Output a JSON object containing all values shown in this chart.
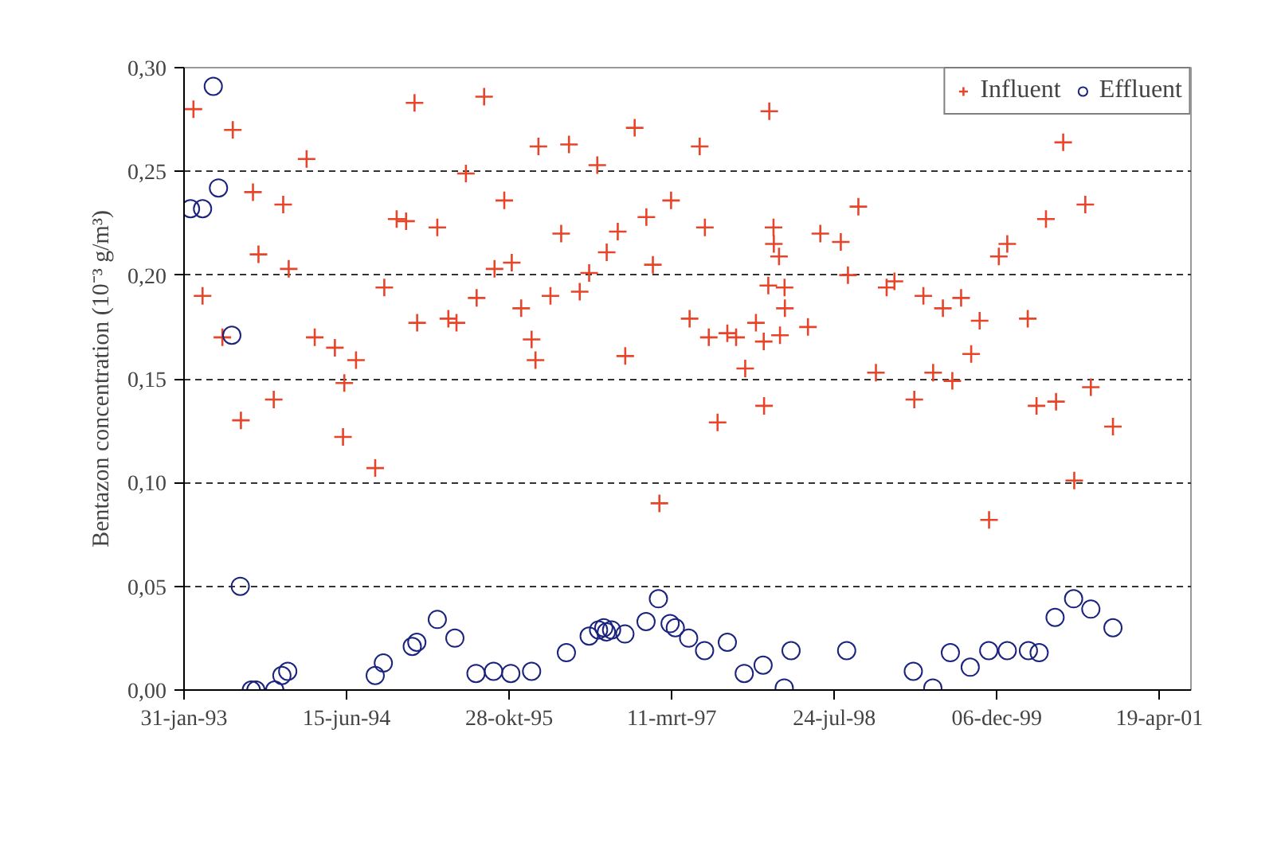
{
  "chart_data": {
    "type": "scatter",
    "ylabel": "Bentazon concentration (10⁻³ g/m³)",
    "xlim": [
      "1993-01-31",
      "2001-07-25"
    ],
    "xticks": [
      {
        "value": "1993-01-31",
        "label": "31-jan-93"
      },
      {
        "value": "1994-06-15",
        "label": "15-jun-94"
      },
      {
        "value": "1995-10-28",
        "label": "28-okt-95"
      },
      {
        "value": "1997-03-11",
        "label": "11-mrt-97"
      },
      {
        "value": "1998-07-24",
        "label": "24-jul-98"
      },
      {
        "value": "1999-12-06",
        "label": "06-dec-99"
      },
      {
        "value": "2001-04-19",
        "label": "19-apr-01"
      }
    ],
    "ylim": [
      0,
      0.3
    ],
    "yticks": [
      {
        "value": 0,
        "label": "0,00"
      },
      {
        "value": 0.05,
        "label": "0,05"
      },
      {
        "value": 0.1,
        "label": "0,10"
      },
      {
        "value": 0.15,
        "label": "0,15"
      },
      {
        "value": 0.2,
        "label": "0,20"
      },
      {
        "value": 0.25,
        "label": "0,25"
      },
      {
        "value": 0.3,
        "label": "0,30"
      }
    ],
    "grid": "y",
    "legend": "top right",
    "series": [
      {
        "name": "Influent",
        "color": "#e8442a",
        "marker": "cross",
        "x": [
          "1993-03-01",
          "1993-06-30",
          "1993-03-29",
          "1993-05-29",
          "1993-07-25",
          "1993-08-31",
          "1993-09-17",
          "1993-11-03",
          "1993-12-02",
          "1993-12-19",
          "1994-02-12",
          "1994-03-09",
          "1994-05-10",
          "1994-06-04",
          "1994-06-08",
          "1994-07-14",
          "1994-09-11",
          "1994-10-09",
          "1994-11-16",
          "1994-12-15",
          "1995-01-10",
          "1995-01-18",
          "1995-03-21",
          "1995-04-24",
          "1995-05-19",
          "1995-06-17",
          "1995-07-20",
          "1995-08-12",
          "1995-09-13",
          "1995-10-13",
          "1995-11-05",
          "1995-12-04",
          "1996-01-05",
          "1996-01-17",
          "1996-01-26",
          "1996-03-03",
          "1996-04-05",
          "1996-04-29",
          "1996-06-01",
          "1996-06-30",
          "1996-07-25",
          "1996-08-23",
          "1996-09-26",
          "1996-10-19",
          "1996-11-17",
          "1996-12-23",
          "1997-01-12",
          "1997-02-01",
          "1997-03-09",
          "1997-05-05",
          "1997-06-05",
          "1997-06-21",
          "1997-07-03",
          "1997-07-30",
          "1997-08-29",
          "1997-09-25",
          "1997-10-23",
          "1997-11-25",
          "1997-12-19",
          "1997-12-20",
          "1998-01-02",
          "1998-01-05",
          "1998-01-18",
          "1998-01-19",
          "1998-02-04",
          "1998-02-07",
          "1998-02-21",
          "1998-02-22",
          "1998-05-04",
          "1998-06-11",
          "1998-08-13",
          "1998-09-04",
          "1998-10-06",
          "1998-11-29",
          "1999-01-01",
          "1999-01-25",
          "1999-03-27",
          "1999-04-24",
          "1999-05-24",
          "1999-06-23",
          "1999-07-22",
          "1999-08-18",
          "1999-09-18",
          "1999-10-14",
          "1999-11-12",
          "1999-12-12",
          "2000-01-07",
          "2000-03-10",
          "2000-04-06",
          "2000-05-05",
          "2000-06-05",
          "2000-06-27",
          "2000-07-31",
          "2000-09-03",
          "2000-09-20",
          "2000-11-27"
        ],
        "values": [
          0.28,
          0.27,
          0.19,
          0.17,
          0.13,
          0.24,
          0.21,
          0.14,
          0.234,
          0.203,
          0.256,
          0.17,
          0.165,
          0.122,
          0.148,
          0.159,
          0.107,
          0.194,
          0.227,
          0.226,
          0.283,
          0.177,
          0.223,
          0.179,
          0.177,
          0.249,
          0.189,
          0.286,
          0.203,
          0.236,
          0.206,
          0.184,
          0.169,
          0.159,
          0.262,
          0.19,
          0.22,
          0.263,
          0.192,
          0.201,
          0.253,
          0.211,
          0.221,
          0.161,
          0.271,
          0.228,
          0.205,
          0.09,
          0.236,
          0.179,
          0.262,
          0.223,
          0.17,
          0.129,
          0.172,
          0.17,
          0.155,
          0.177,
          0.168,
          0.137,
          0.195,
          0.279,
          0.223,
          0.215,
          0.209,
          0.171,
          0.194,
          0.184,
          0.175,
          0.22,
          0.216,
          0.2,
          0.233,
          0.153,
          0.194,
          0.197,
          0.14,
          0.19,
          0.153,
          0.184,
          0.149,
          0.189,
          0.162,
          0.178,
          0.082,
          0.209,
          0.215,
          0.179,
          0.137,
          0.227,
          0.139,
          0.264,
          0.101,
          0.234,
          0.146,
          0.127
        ]
      },
      {
        "name": "Effluent",
        "color": "#1a237e",
        "marker": "circle",
        "x": [
          "1993-02-20",
          "1993-03-29",
          "1993-05-01",
          "1993-05-17",
          "1993-06-27",
          "1993-07-23",
          "1993-08-26",
          "1993-09-09",
          "1993-11-06",
          "1993-11-28",
          "1993-12-16",
          "1994-09-11",
          "1994-10-06",
          "1995-01-03",
          "1995-01-17",
          "1995-03-21",
          "1995-05-14",
          "1995-07-18",
          "1995-09-10",
          "1995-11-02",
          "1996-01-05",
          "1996-04-21",
          "1996-06-30",
          "1996-07-29",
          "1996-08-14",
          "1996-08-22",
          "1996-09-07",
          "1996-10-18",
          "1996-12-22",
          "1997-01-29",
          "1997-03-06",
          "1997-03-22",
          "1997-05-02",
          "1997-06-20",
          "1997-08-29",
          "1997-10-20",
          "1997-12-17",
          "1998-02-20",
          "1998-03-13",
          "1998-08-31",
          "1999-03-24",
          "1999-05-23",
          "1999-07-16",
          "1999-09-15",
          "1999-11-11",
          "2000-01-07",
          "2000-03-12",
          "2000-04-14",
          "2000-06-02",
          "2000-07-29",
          "2000-09-20",
          "2000-11-27"
        ],
        "values": [
          0.232,
          0.232,
          0.291,
          0.242,
          0.171,
          0.05,
          0.0,
          0.0,
          0.0,
          0.007,
          0.009,
          0.007,
          0.013,
          0.021,
          0.023,
          0.034,
          0.025,
          0.008,
          0.009,
          0.008,
          0.009,
          0.018,
          0.026,
          0.029,
          0.03,
          0.028,
          0.029,
          0.027,
          0.033,
          0.044,
          0.032,
          0.03,
          0.025,
          0.019,
          0.023,
          0.008,
          0.012,
          0.001,
          0.019,
          0.019,
          0.009,
          0.001,
          0.018,
          0.011,
          0.019,
          0.019,
          0.019,
          0.018,
          0.035,
          0.044,
          0.039,
          0.03
        ]
      }
    ]
  }
}
